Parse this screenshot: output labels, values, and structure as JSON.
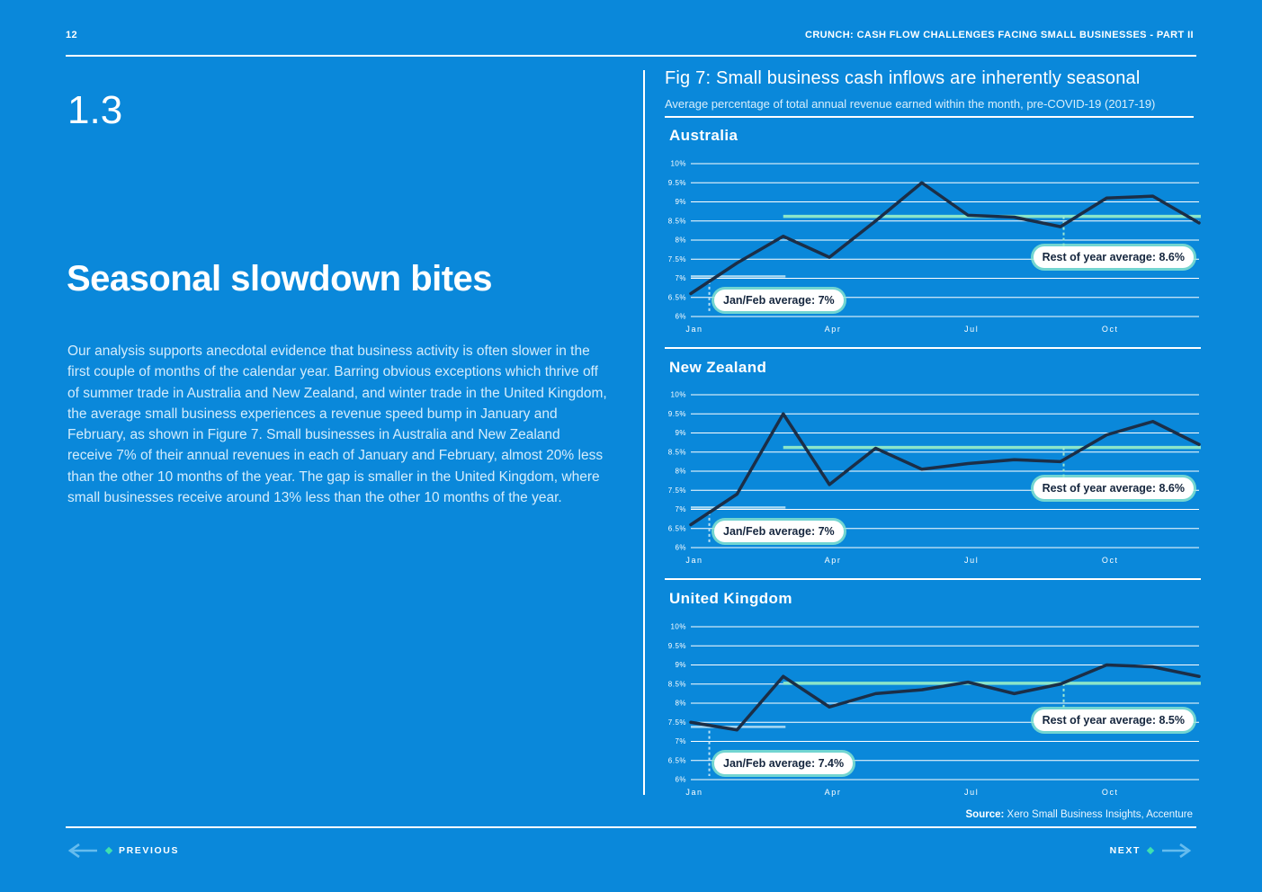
{
  "page": {
    "number": "12",
    "header_title": "CRUNCH: CASH FLOW CHALLENGES FACING SMALL BUSINESSES - PART II",
    "section_number": "1.3",
    "heading": "Seasonal slowdown bites",
    "body": "Our analysis supports anecdotal evidence that business activity is often slower in the first couple of months of the calendar year. Barring obvious exceptions which thrive off of summer trade in Australia and New Zealand, and winter trade in the United Kingdom, the average small business experiences a revenue speed bump in January and February, as shown in Figure 7. Small businesses in Australia and New Zealand receive 7% of their annual revenues in each of January and February, almost 20% less than the other 10 months of the year. The gap is smaller in the United Kingdom, where small businesses receive around 13% less than the other 10 months of the year.",
    "source_label": "Source:",
    "source_text": " Xero Small Business Insights, Accenture",
    "prev_label": "PREVIOUS",
    "next_label": "NEXT"
  },
  "figure": {
    "title": "Fig 7: Small business cash inflows are inherently seasonal",
    "subtitle": "Average percentage of total annual revenue earned within the month, pre-COVID-19 (2017-19)"
  },
  "colors": {
    "background": "#0a88da",
    "data_line": "#1b2e47",
    "rest_avg_line": "#8be5c9",
    "janfeb_avg_line": "#a8d8f2",
    "janfeb_dash": "#b8e0f6",
    "rest_dash": "#9fe9d3",
    "gridline": "#ffffff",
    "arrow_blue": "#66bcee",
    "marker_teal": "#3fe0af",
    "pill_text": "#15263e"
  },
  "chart_data": [
    {
      "type": "line",
      "title": "Australia",
      "x": [
        "Jan",
        "Feb",
        "Mar",
        "Apr",
        "May",
        "Jun",
        "Jul",
        "Aug",
        "Sep",
        "Oct",
        "Nov",
        "Dec"
      ],
      "values": [
        6.6,
        7.4,
        8.1,
        7.55,
        8.5,
        9.5,
        8.65,
        8.6,
        8.35,
        9.1,
        9.15,
        8.45
      ],
      "ylim": [
        6,
        10
      ],
      "yticks": [
        {
          "label": "10%",
          "value": 10
        },
        {
          "label": "9.5%",
          "value": 9.5
        },
        {
          "label": "9%",
          "value": 9
        },
        {
          "label": "8.5%",
          "value": 8.5
        },
        {
          "label": "8%",
          "value": 8
        },
        {
          "label": "7.5%",
          "value": 7.5
        },
        {
          "label": "7%",
          "value": 7
        },
        {
          "label": "6.5%",
          "value": 6.5
        },
        {
          "label": "6%",
          "value": 6
        }
      ],
      "x_ticks": [
        {
          "label": "Jan",
          "month": 0
        },
        {
          "label": "Apr",
          "month": 3
        },
        {
          "label": "Jul",
          "month": 6
        },
        {
          "label": "Oct",
          "month": 9
        }
      ],
      "jan_feb": {
        "label": "Jan/Feb average: 7%",
        "value": 7.05,
        "span_months": [
          0,
          2.05
        ]
      },
      "rest": {
        "label": "Rest of year average: 8.6%",
        "value": 8.62,
        "span_from_month": 2
      }
    },
    {
      "type": "line",
      "title": "New Zealand",
      "x": [
        "Jan",
        "Feb",
        "Mar",
        "Apr",
        "May",
        "Jun",
        "Jul",
        "Aug",
        "Sep",
        "Oct",
        "Nov",
        "Dec"
      ],
      "values": [
        6.6,
        7.4,
        9.5,
        7.65,
        8.6,
        8.05,
        8.2,
        8.3,
        8.25,
        8.95,
        9.3,
        8.7
      ],
      "ylim": [
        6,
        10
      ],
      "yticks": [
        {
          "label": "10%",
          "value": 10
        },
        {
          "label": "9.5%",
          "value": 9.5
        },
        {
          "label": "9%",
          "value": 9
        },
        {
          "label": "8.5%",
          "value": 8.5
        },
        {
          "label": "8%",
          "value": 8
        },
        {
          "label": "7.5%",
          "value": 7.5
        },
        {
          "label": "7%",
          "value": 7
        },
        {
          "label": "6.5%",
          "value": 6.5
        },
        {
          "label": "6%",
          "value": 6
        }
      ],
      "x_ticks": [
        {
          "label": "Jan",
          "month": 0
        },
        {
          "label": "Apr",
          "month": 3
        },
        {
          "label": "Jul",
          "month": 6
        },
        {
          "label": "Oct",
          "month": 9
        }
      ],
      "jan_feb": {
        "label": "Jan/Feb average: 7%",
        "value": 7.05,
        "span_months": [
          0,
          2.05
        ]
      },
      "rest": {
        "label": "Rest of year average: 8.6%",
        "value": 8.62,
        "span_from_month": 2
      }
    },
    {
      "type": "line",
      "title": "United Kingdom",
      "x": [
        "Jan",
        "Feb",
        "Mar",
        "Apr",
        "May",
        "Jun",
        "Jul",
        "Aug",
        "Sep",
        "Oct",
        "Nov",
        "Dec"
      ],
      "values": [
        7.5,
        7.3,
        8.7,
        7.9,
        8.25,
        8.35,
        8.55,
        8.25,
        8.5,
        9.0,
        8.95,
        8.7
      ],
      "ylim": [
        6,
        10
      ],
      "yticks": [
        {
          "label": "10%",
          "value": 10
        },
        {
          "label": "9.5%",
          "value": 9.5
        },
        {
          "label": "9%",
          "value": 9
        },
        {
          "label": "8.5%",
          "value": 8.5
        },
        {
          "label": "8%",
          "value": 8
        },
        {
          "label": "7.5%",
          "value": 7.5
        },
        {
          "label": "7%",
          "value": 7
        },
        {
          "label": "6.5%",
          "value": 6.5
        },
        {
          "label": "6%",
          "value": 6
        }
      ],
      "x_ticks": [
        {
          "label": "Jan",
          "month": 0
        },
        {
          "label": "Apr",
          "month": 3
        },
        {
          "label": "Jul",
          "month": 6
        },
        {
          "label": "Oct",
          "month": 9
        }
      ],
      "jan_feb": {
        "label": "Jan/Feb average: 7.4%",
        "value": 7.38,
        "span_months": [
          0,
          2.05
        ]
      },
      "rest": {
        "label": "Rest of year average: 8.5%",
        "value": 8.52,
        "span_from_month": 2
      }
    }
  ]
}
